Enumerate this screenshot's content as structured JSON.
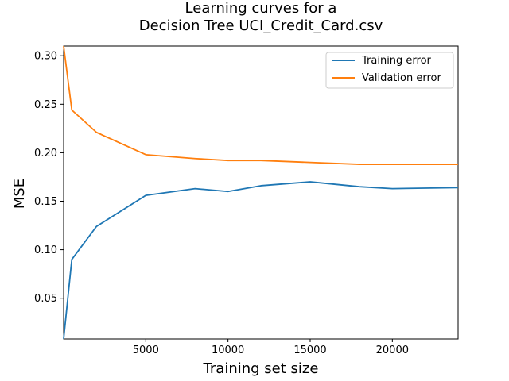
{
  "chart_data": {
    "type": "line",
    "title": [
      "Learning curves for a",
      "Decision Tree UCI_Credit_Card.csv"
    ],
    "xlabel": "Training set size",
    "ylabel": "MSE",
    "xlim": [
      1,
      24000
    ],
    "ylim": [
      0.008,
      0.31
    ],
    "x_ticks": [
      5000,
      10000,
      15000,
      20000
    ],
    "y_ticks": [
      0.05,
      0.1,
      0.15,
      0.2,
      0.25,
      0.3
    ],
    "x_tick_labels": [
      "5000",
      "10000",
      "15000",
      "20000"
    ],
    "y_tick_labels": [
      "0.05",
      "0.10",
      "0.15",
      "0.20",
      "0.25",
      "0.30"
    ],
    "x": [
      1,
      500,
      2000,
      5000,
      8000,
      10000,
      12000,
      15000,
      18000,
      20000,
      24000
    ],
    "series": [
      {
        "name": "Training error",
        "color": "#1f77b4",
        "values": [
          0.008,
          0.09,
          0.124,
          0.156,
          0.163,
          0.16,
          0.166,
          0.17,
          0.165,
          0.163,
          0.164
        ]
      },
      {
        "name": "Validation error",
        "color": "#ff7f0e",
        "values": [
          0.31,
          0.244,
          0.221,
          0.198,
          0.194,
          0.192,
          0.192,
          0.19,
          0.188,
          0.188,
          0.188
        ]
      }
    ],
    "legend_position": "top-right",
    "grid": false
  }
}
